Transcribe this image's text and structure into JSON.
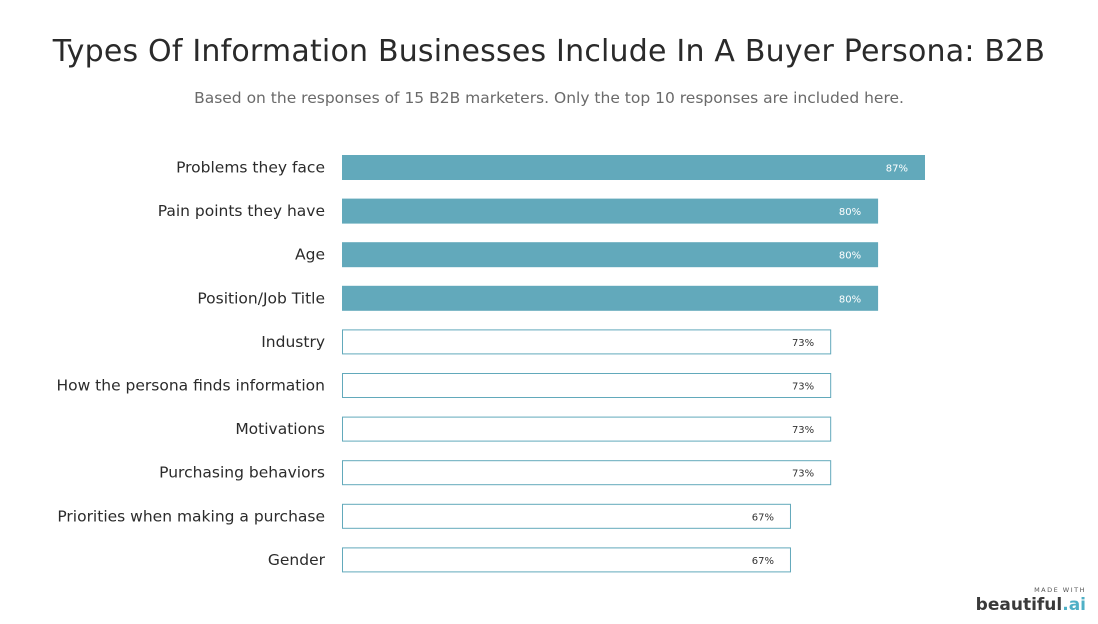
{
  "chart_data": {
    "type": "bar",
    "orientation": "horizontal",
    "title": "Types Of Information Businesses Include In A Buyer Persona: B2B",
    "subtitle": "Based on the responses of 15 B2B marketers. Only the top 10 responses are included here.",
    "categories": [
      "Problems they face",
      "Pain points they have",
      "Age",
      "Position/Job Title",
      "Industry",
      "How the persona finds information",
      "Motivations",
      "Purchasing behaviors",
      "Priorities when making a purchase",
      "Gender"
    ],
    "values": [
      87,
      80,
      80,
      80,
      73,
      73,
      73,
      73,
      67,
      67
    ],
    "value_labels": [
      "87%",
      "80%",
      "80%",
      "80%",
      "73%",
      "73%",
      "73%",
      "73%",
      "67%",
      "67%"
    ],
    "highlighted": [
      true,
      true,
      true,
      true,
      false,
      false,
      false,
      false,
      false,
      false
    ],
    "xlim": [
      0,
      100
    ],
    "grid": false,
    "colors": {
      "highlight": "#62a9bb",
      "outline": "#62a9bb",
      "plain_fill": "#ffffff"
    }
  },
  "watermark": {
    "made_with": "MADE WITH",
    "brand": "beautiful",
    "brand_suffix": ".ai"
  }
}
